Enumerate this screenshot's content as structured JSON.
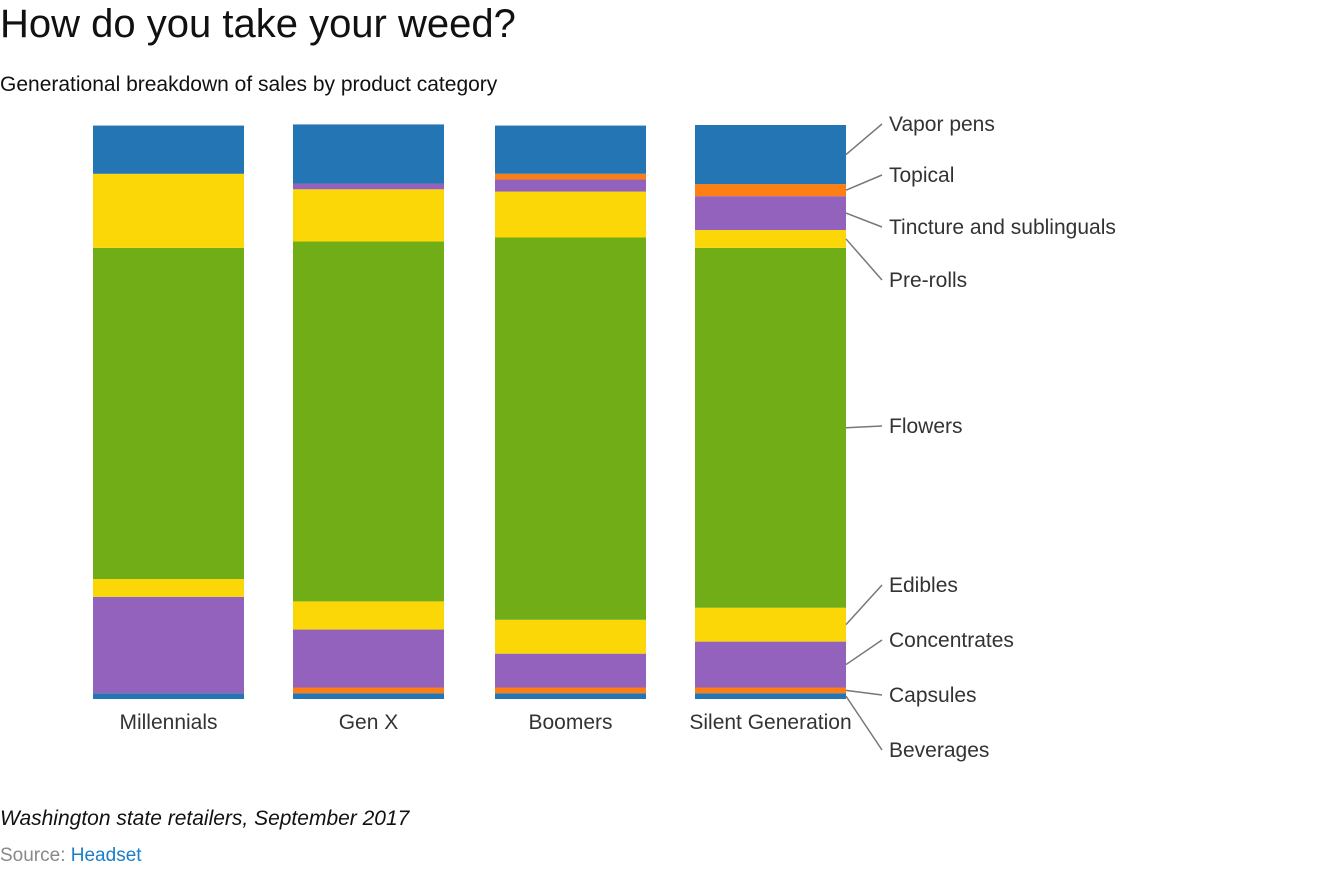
{
  "title": "How do you take your weed?",
  "subtitle": "Generational breakdown of sales by product category",
  "footnote": "Washington state retailers, September 2017",
  "source": {
    "label": "Source:",
    "link_text": "Headset"
  },
  "chart_data": {
    "type": "bar",
    "stacked": true,
    "normalized_percent": true,
    "title": "How do you take your weed?",
    "subtitle": "Generational breakdown of sales by product category",
    "categories": [
      "Millennials",
      "Gen X",
      "Boomers",
      "Silent Generation"
    ],
    "legend_placement": "right (direct labels)",
    "grid": false,
    "ylim": [
      0,
      100
    ],
    "series": [
      {
        "name": "Beverages",
        "color": "#2475b4",
        "values": [
          1.0,
          1.0,
          1.0,
          1.0
        ]
      },
      {
        "name": "Capsules",
        "color": "#fd7e13",
        "values": [
          0,
          1.0,
          1.0,
          1.0
        ]
      },
      {
        "name": "Concentrates",
        "color": "#9362bc",
        "values": [
          16.8,
          10.1,
          5.9,
          8.0
        ]
      },
      {
        "name": "Edibles",
        "color": "#fcd707",
        "values": [
          3.1,
          4.9,
          5.9,
          5.9
        ]
      },
      {
        "name": "Flowers",
        "color": "#70ad16",
        "values": [
          57.7,
          62.7,
          66.6,
          62.7
        ]
      },
      {
        "name": "Pre-rolls",
        "color": "#fcd707",
        "values": [
          12.9,
          9.1,
          8.0,
          3.1
        ]
      },
      {
        "name": "Tincture and sublinguals",
        "color": "#9362bc",
        "values": [
          0,
          1.0,
          2.1,
          5.9
        ]
      },
      {
        "name": "Topical",
        "color": "#fd7e13",
        "values": [
          0,
          0,
          1.0,
          2.1
        ]
      },
      {
        "name": "Vapor pens",
        "color": "#2475b4",
        "values": [
          8.4,
          10.3,
          8.4,
          10.3
        ]
      }
    ]
  }
}
